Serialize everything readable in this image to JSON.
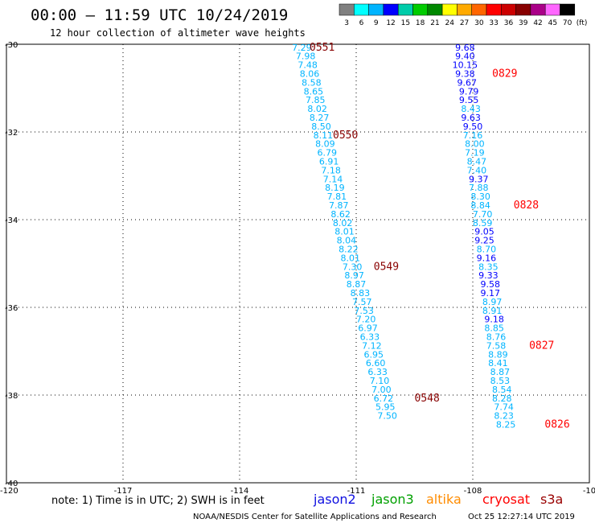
{
  "header": {
    "title": "00:00 – 11:59 UTC 10/24/2019",
    "subtitle": "12 hour collection of altimeter wave heights"
  },
  "colorbar": {
    "labels": [
      "3",
      "6",
      "9",
      "12",
      "15",
      "18",
      "21",
      "24",
      "27",
      "30",
      "33",
      "36",
      "39",
      "42",
      "45",
      "70"
    ],
    "unit": "(ft)",
    "colors": [
      "#808080",
      "#00ffff",
      "#00b4ff",
      "#0000ff",
      "#00ccaa",
      "#00cc00",
      "#008800",
      "#ffff00",
      "#ffaa00",
      "#ff6600",
      "#ff0000",
      "#cc0000",
      "#880000",
      "#aa0088",
      "#ff66ff",
      "#000000"
    ]
  },
  "footer": {
    "note": "note: 1) Time is in UTC; 2) SWH is in feet",
    "legend": [
      {
        "name": "jason2",
        "color": "#1010e0"
      },
      {
        "name": "jason3",
        "color": "#00a000"
      },
      {
        "name": "altika",
        "color": "#ff8c00"
      },
      {
        "name": "cryosat",
        "color": "#ff0000"
      },
      {
        "name": "s3a",
        "color": "#990000"
      }
    ],
    "credit": "NOAA/NESDIS Center for Satellite Applications and Research",
    "timestamp": "Oct 25 12:27:14 UTC 2019"
  },
  "chart_data": {
    "type": "scatter",
    "xlim": [
      -120,
      -105
    ],
    "ylim": [
      -40,
      -30
    ],
    "xticks": [
      {
        "v": -117,
        "l": "-117"
      },
      {
        "v": -114,
        "l": "-114"
      },
      {
        "v": -111,
        "l": "-111"
      },
      {
        "v": -108,
        "l": "-108"
      },
      {
        "v": -105,
        "l": "-10"
      }
    ],
    "yticks": [
      {
        "v": -30,
        "l": "-30"
      },
      {
        "v": -32,
        "l": "-32"
      },
      {
        "v": -34,
        "l": "-34"
      },
      {
        "v": -36,
        "l": "-36"
      },
      {
        "v": -38,
        "l": "-38"
      },
      {
        "v": -40,
        "l": "-40"
      }
    ],
    "corner_label": "-120",
    "grid": true,
    "track_a": {
      "satellite": "s3a",
      "label_color": "#880000",
      "points": [
        {
          "lon": -112.4,
          "lat": -30.07,
          "v": "7.29",
          "c": "#00b4ff"
        },
        {
          "lon": -112.3,
          "lat": -30.27,
          "v": "7.98",
          "c": "#00b4ff"
        },
        {
          "lon": -112.25,
          "lat": -30.47,
          "v": "7.48",
          "c": "#00b4ff"
        },
        {
          "lon": -112.2,
          "lat": -30.67,
          "v": "8.06",
          "c": "#00b4ff"
        },
        {
          "lon": -112.15,
          "lat": -30.87,
          "v": "8.58",
          "c": "#00b4ff"
        },
        {
          "lon": -112.1,
          "lat": -31.07,
          "v": "8.65",
          "c": "#00b4ff"
        },
        {
          "lon": -112.05,
          "lat": -31.27,
          "v": "7.85",
          "c": "#00b4ff"
        },
        {
          "lon": -112.0,
          "lat": -31.47,
          "v": "8.02",
          "c": "#00b4ff"
        },
        {
          "lon": -111.95,
          "lat": -31.67,
          "v": "8.27",
          "c": "#00b4ff"
        },
        {
          "lon": -111.9,
          "lat": -31.87,
          "v": "8.50",
          "c": "#00b4ff"
        },
        {
          "lon": -111.85,
          "lat": -32.07,
          "v": "8.11",
          "c": "#00b4ff"
        },
        {
          "lon": -111.8,
          "lat": -32.27,
          "v": "8.09",
          "c": "#00b4ff"
        },
        {
          "lon": -111.75,
          "lat": -32.47,
          "v": "6.79",
          "c": "#00b4ff"
        },
        {
          "lon": -111.7,
          "lat": -32.67,
          "v": "6.91",
          "c": "#00b4ff"
        },
        {
          "lon": -111.65,
          "lat": -32.87,
          "v": "7.18",
          "c": "#00b4ff"
        },
        {
          "lon": -111.6,
          "lat": -33.07,
          "v": "7.14",
          "c": "#00b4ff"
        },
        {
          "lon": -111.55,
          "lat": -33.27,
          "v": "8.19",
          "c": "#00b4ff"
        },
        {
          "lon": -111.5,
          "lat": -33.47,
          "v": "7.81",
          "c": "#00b4ff"
        },
        {
          "lon": -111.45,
          "lat": -33.67,
          "v": "7.87",
          "c": "#00b4ff"
        },
        {
          "lon": -111.4,
          "lat": -33.87,
          "v": "8.62",
          "c": "#00b4ff"
        },
        {
          "lon": -111.35,
          "lat": -34.07,
          "v": "8.02",
          "c": "#00b4ff"
        },
        {
          "lon": -111.3,
          "lat": -34.27,
          "v": "8.01",
          "c": "#00b4ff"
        },
        {
          "lon": -111.25,
          "lat": -34.47,
          "v": "8.04",
          "c": "#00b4ff"
        },
        {
          "lon": -111.2,
          "lat": -34.67,
          "v": "8.22",
          "c": "#00b4ff"
        },
        {
          "lon": -111.15,
          "lat": -34.87,
          "v": "8.01",
          "c": "#00b4ff"
        },
        {
          "lon": -111.1,
          "lat": -35.07,
          "v": "7.30",
          "c": "#00b4ff"
        },
        {
          "lon": -111.05,
          "lat": -35.27,
          "v": "8.97",
          "c": "#00b4ff"
        },
        {
          "lon": -111.0,
          "lat": -35.47,
          "v": "8.87",
          "c": "#00b4ff"
        },
        {
          "lon": -110.9,
          "lat": -35.67,
          "v": "8.83",
          "c": "#00b4ff"
        },
        {
          "lon": -110.85,
          "lat": -35.87,
          "v": "7.57",
          "c": "#00b4ff"
        },
        {
          "lon": -110.8,
          "lat": -36.07,
          "v": "7.53",
          "c": "#00b4ff"
        },
        {
          "lon": -110.75,
          "lat": -36.27,
          "v": "7.20",
          "c": "#00b4ff"
        },
        {
          "lon": -110.7,
          "lat": -36.47,
          "v": "6.97",
          "c": "#00b4ff"
        },
        {
          "lon": -110.65,
          "lat": -36.67,
          "v": "6.33",
          "c": "#00b4ff"
        },
        {
          "lon": -110.6,
          "lat": -36.87,
          "v": "7.12",
          "c": "#00b4ff"
        },
        {
          "lon": -110.55,
          "lat": -37.07,
          "v": "6.95",
          "c": "#00b4ff"
        },
        {
          "lon": -110.5,
          "lat": -37.27,
          "v": "6.60",
          "c": "#00b4ff"
        },
        {
          "lon": -110.45,
          "lat": -37.47,
          "v": "6.33",
          "c": "#00b4ff"
        },
        {
          "lon": -110.4,
          "lat": -37.67,
          "v": "7.10",
          "c": "#00b4ff"
        },
        {
          "lon": -110.35,
          "lat": -37.87,
          "v": "7.00",
          "c": "#00b4ff"
        },
        {
          "lon": -110.3,
          "lat": -38.07,
          "v": "6.72",
          "c": "#00b4ff"
        },
        {
          "lon": -110.25,
          "lat": -38.27,
          "v": "5.95",
          "c": "#00b4ff"
        },
        {
          "lon": -110.2,
          "lat": -38.47,
          "v": "7.50",
          "c": "#00b4ff"
        }
      ],
      "times": [
        {
          "lon": -112.2,
          "lat": -30.07,
          "t": "0551"
        },
        {
          "lon": -111.6,
          "lat": -32.07,
          "t": "0550"
        },
        {
          "lon": -110.55,
          "lat": -35.07,
          "t": "0549"
        },
        {
          "lon": -109.5,
          "lat": -38.07,
          "t": "0548"
        }
      ]
    },
    "track_b": {
      "satellite": "cryosat",
      "label_color": "#ff0000",
      "points": [
        {
          "lon": -108.2,
          "lat": -30.07,
          "v": "9.68",
          "c": "#0000ff"
        },
        {
          "lon": -108.2,
          "lat": -30.27,
          "v": "9.40",
          "c": "#0000ff"
        },
        {
          "lon": -108.2,
          "lat": -30.47,
          "v": "10.15",
          "c": "#0000ff"
        },
        {
          "lon": -108.2,
          "lat": -30.67,
          "v": "9.38",
          "c": "#0000ff"
        },
        {
          "lon": -108.15,
          "lat": -30.87,
          "v": "9.67",
          "c": "#0000ff"
        },
        {
          "lon": -108.1,
          "lat": -31.07,
          "v": "9.79",
          "c": "#0000ff"
        },
        {
          "lon": -108.1,
          "lat": -31.27,
          "v": "9.55",
          "c": "#0000ff"
        },
        {
          "lon": -108.05,
          "lat": -31.47,
          "v": "8.43",
          "c": "#00b4ff"
        },
        {
          "lon": -108.05,
          "lat": -31.67,
          "v": "9.63",
          "c": "#0000ff"
        },
        {
          "lon": -108.0,
          "lat": -31.87,
          "v": "9.50",
          "c": "#0000ff"
        },
        {
          "lon": -108.0,
          "lat": -32.07,
          "v": "7.16",
          "c": "#00b4ff"
        },
        {
          "lon": -107.95,
          "lat": -32.27,
          "v": "8.00",
          "c": "#00b4ff"
        },
        {
          "lon": -107.95,
          "lat": -32.47,
          "v": "7.19",
          "c": "#00b4ff"
        },
        {
          "lon": -107.9,
          "lat": -32.67,
          "v": "8.47",
          "c": "#00b4ff"
        },
        {
          "lon": -107.9,
          "lat": -32.87,
          "v": "7.40",
          "c": "#00b4ff"
        },
        {
          "lon": -107.85,
          "lat": -33.07,
          "v": "9.37",
          "c": "#0000ff"
        },
        {
          "lon": -107.85,
          "lat": -33.27,
          "v": "7.88",
          "c": "#00b4ff"
        },
        {
          "lon": -107.8,
          "lat": -33.47,
          "v": "8.30",
          "c": "#00b4ff"
        },
        {
          "lon": -107.8,
          "lat": -33.67,
          "v": "8.84",
          "c": "#00b4ff"
        },
        {
          "lon": -107.75,
          "lat": -33.87,
          "v": "7.70",
          "c": "#00b4ff"
        },
        {
          "lon": -107.75,
          "lat": -34.07,
          "v": "8.59",
          "c": "#00b4ff"
        },
        {
          "lon": -107.7,
          "lat": -34.27,
          "v": "9.05",
          "c": "#0000ff"
        },
        {
          "lon": -107.7,
          "lat": -34.47,
          "v": "9.25",
          "c": "#0000ff"
        },
        {
          "lon": -107.65,
          "lat": -34.67,
          "v": "8.70",
          "c": "#00b4ff"
        },
        {
          "lon": -107.65,
          "lat": -34.87,
          "v": "9.16",
          "c": "#0000ff"
        },
        {
          "lon": -107.6,
          "lat": -35.07,
          "v": "8.35",
          "c": "#00b4ff"
        },
        {
          "lon": -107.6,
          "lat": -35.27,
          "v": "9.33",
          "c": "#0000ff"
        },
        {
          "lon": -107.55,
          "lat": -35.47,
          "v": "9.58",
          "c": "#0000ff"
        },
        {
          "lon": -107.55,
          "lat": -35.67,
          "v": "9.17",
          "c": "#0000ff"
        },
        {
          "lon": -107.5,
          "lat": -35.87,
          "v": "8.97",
          "c": "#00b4ff"
        },
        {
          "lon": -107.5,
          "lat": -36.07,
          "v": "8.91",
          "c": "#00b4ff"
        },
        {
          "lon": -107.45,
          "lat": -36.27,
          "v": "9.18",
          "c": "#0000ff"
        },
        {
          "lon": -107.45,
          "lat": -36.47,
          "v": "8.85",
          "c": "#00b4ff"
        },
        {
          "lon": -107.4,
          "lat": -36.67,
          "v": "8.76",
          "c": "#00b4ff"
        },
        {
          "lon": -107.4,
          "lat": -36.87,
          "v": "7.58",
          "c": "#00b4ff"
        },
        {
          "lon": -107.35,
          "lat": -37.07,
          "v": "8.89",
          "c": "#00b4ff"
        },
        {
          "lon": -107.35,
          "lat": -37.27,
          "v": "8.41",
          "c": "#00b4ff"
        },
        {
          "lon": -107.3,
          "lat": -37.47,
          "v": "8.87",
          "c": "#00b4ff"
        },
        {
          "lon": -107.3,
          "lat": -37.67,
          "v": "8.53",
          "c": "#00b4ff"
        },
        {
          "lon": -107.25,
          "lat": -37.87,
          "v": "8.54",
          "c": "#00b4ff"
        },
        {
          "lon": -107.25,
          "lat": -38.07,
          "v": "8.28",
          "c": "#00b4ff"
        },
        {
          "lon": -107.2,
          "lat": -38.27,
          "v": "7.74",
          "c": "#00b4ff"
        },
        {
          "lon": -107.2,
          "lat": -38.47,
          "v": "8.23",
          "c": "#00b4ff"
        },
        {
          "lon": -107.15,
          "lat": -38.67,
          "v": "8.25",
          "c": "#00b4ff"
        }
      ],
      "times": [
        {
          "lon": -107.5,
          "lat": -30.67,
          "t": "0829"
        },
        {
          "lon": -106.95,
          "lat": -33.67,
          "t": "0828"
        },
        {
          "lon": -106.55,
          "lat": -36.87,
          "t": "0827"
        },
        {
          "lon": -106.15,
          "lat": -38.67,
          "t": "0826"
        }
      ]
    }
  }
}
